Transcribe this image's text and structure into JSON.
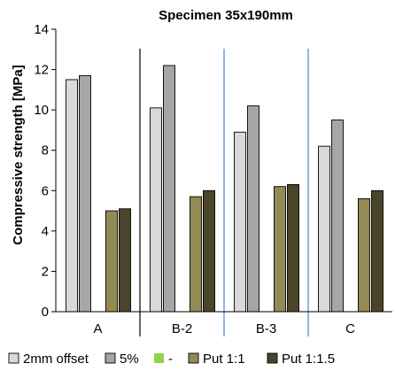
{
  "chart_data": {
    "type": "bar",
    "title": "Specimen 35x190mm",
    "ylabel": "Compressive strength [MPa]",
    "xlabel": "",
    "ylim": [
      0,
      14
    ],
    "yticks": [
      0,
      2,
      4,
      6,
      8,
      10,
      12,
      14
    ],
    "categories": [
      "A",
      "B-2",
      "B-3",
      "C"
    ],
    "series": [
      {
        "name": "2mm offset",
        "color": "#d9d9d9",
        "values": [
          11.5,
          10.1,
          8.9,
          8.2
        ]
      },
      {
        "name": "5%",
        "color": "#a6a6a6",
        "values": [
          11.7,
          12.2,
          10.2,
          9.5
        ]
      },
      {
        "name": "-",
        "color": "#92d050",
        "values": [
          null,
          null,
          null,
          null
        ]
      },
      {
        "name": "Put 1:1",
        "color": "#948a54",
        "values": [
          5.0,
          5.7,
          6.2,
          5.6
        ]
      },
      {
        "name": "Put 1:1.5",
        "color": "#4a452a",
        "values": [
          5.1,
          6.0,
          6.3,
          6.0
        ]
      }
    ],
    "grid": false,
    "legend": "bottom",
    "separator_colors": [
      "#000000",
      "#000000",
      "#4a86c8",
      "#4a86c8"
    ]
  }
}
